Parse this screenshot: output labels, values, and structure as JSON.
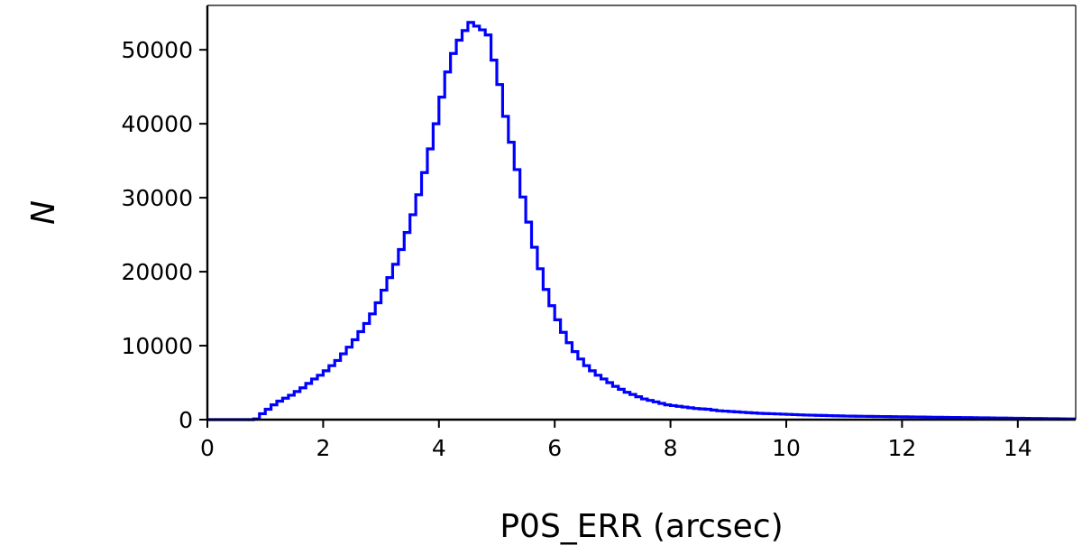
{
  "chart_data": {
    "type": "histogram",
    "title": "",
    "xlabel": "P0S_ERR (arcsec)",
    "ylabel": "N",
    "xlim": [
      0,
      15
    ],
    "ylim": [
      0,
      56000
    ],
    "x_ticks": [
      0,
      2,
      4,
      6,
      8,
      10,
      12,
      14
    ],
    "y_ticks": [
      0,
      10000,
      20000,
      30000,
      40000,
      50000
    ],
    "grid": false,
    "legend": "none",
    "bin_width": 0.1,
    "bin_start": 0,
    "series": [
      {
        "color": "#0000ff",
        "values": [
          0,
          0,
          0,
          0,
          0,
          0,
          0,
          0,
          100,
          800,
          1400,
          2000,
          2500,
          2900,
          3300,
          3800,
          4300,
          4900,
          5500,
          6000,
          6600,
          7300,
          8000,
          8900,
          9800,
          10800,
          11900,
          13000,
          14300,
          15800,
          17500,
          19200,
          21000,
          23000,
          25300,
          27700,
          30400,
          33400,
          36600,
          40000,
          43600,
          47000,
          49500,
          51300,
          52600,
          53700,
          53200,
          52700,
          52000,
          48600,
          45300,
          41000,
          37500,
          33800,
          30100,
          26700,
          23300,
          20400,
          17600,
          15400,
          13500,
          11800,
          10400,
          9200,
          8200,
          7300,
          6600,
          6000,
          5500,
          5000,
          4500,
          4100,
          3700,
          3400,
          3100,
          2800,
          2600,
          2400,
          2200,
          2000,
          1900,
          1800,
          1700,
          1600,
          1500,
          1450,
          1400,
          1300,
          1200,
          1150,
          1100,
          1050,
          1000,
          950,
          900,
          850,
          820,
          800,
          770,
          740,
          710,
          680,
          650,
          620,
          600,
          580,
          560,
          540,
          520,
          500,
          480,
          470,
          460,
          450,
          440,
          430,
          420,
          410,
          400,
          390,
          380,
          370,
          360,
          350,
          340,
          330,
          320,
          310,
          300,
          290,
          280,
          270,
          260,
          250,
          240,
          230,
          220,
          210,
          200,
          190,
          180,
          170,
          160,
          150,
          140,
          130,
          120,
          110,
          100,
          90
        ]
      }
    ]
  }
}
